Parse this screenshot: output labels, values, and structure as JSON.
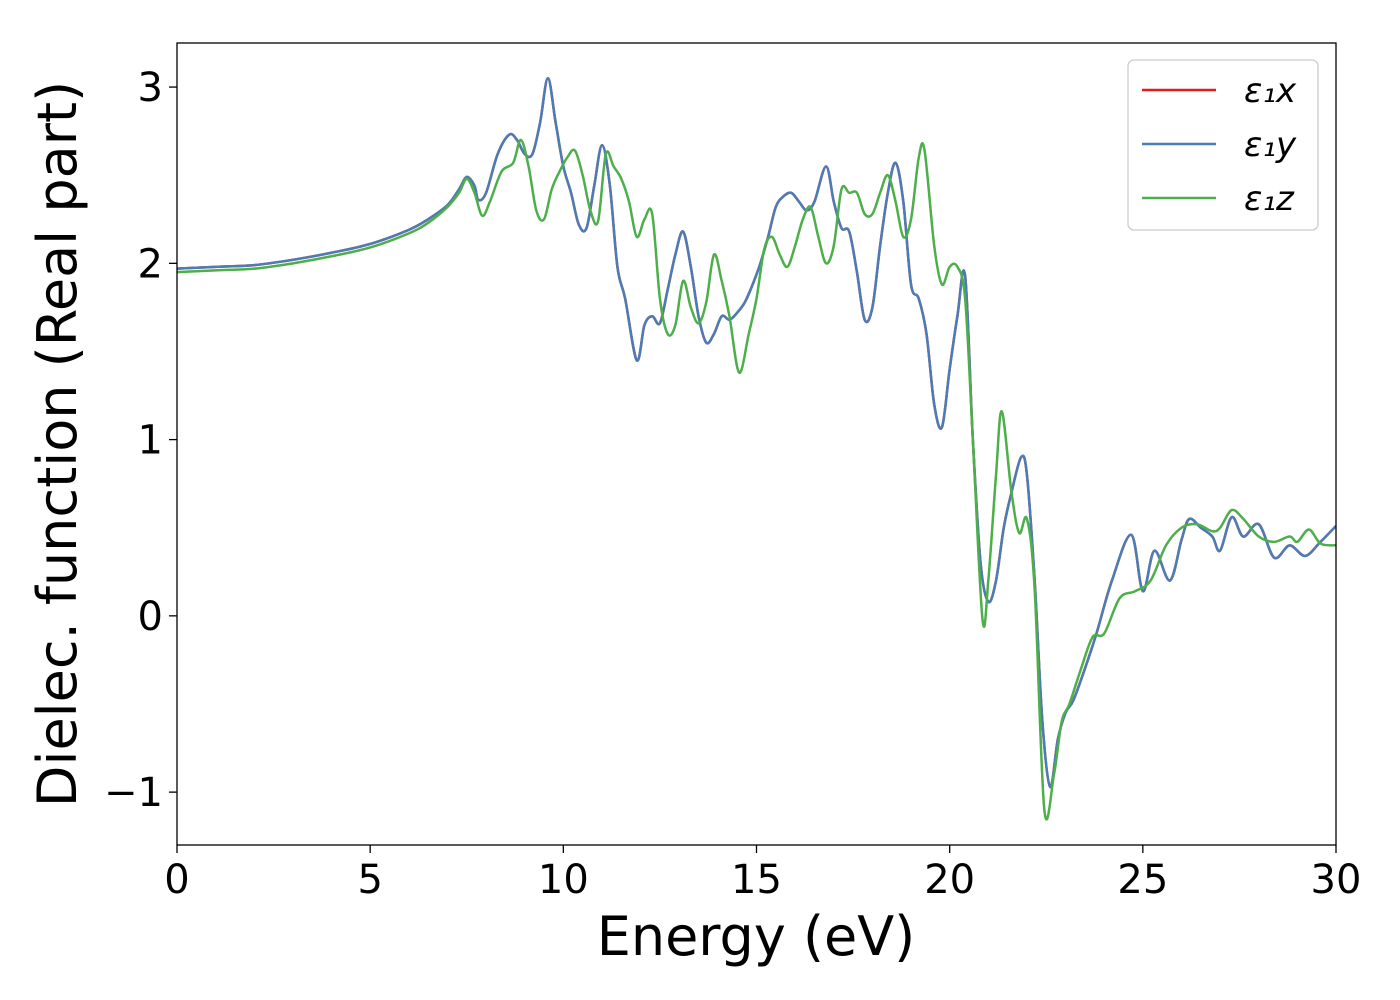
{
  "chart_data": {
    "type": "line",
    "xlabel": "Energy (eV)",
    "ylabel": "Dielec. function (Real part)",
    "xlim": [
      0,
      30
    ],
    "ylim": [
      -1.3,
      3.25
    ],
    "xticks": [
      0,
      5,
      10,
      15,
      20,
      25,
      30
    ],
    "xtick_labels": [
      "0",
      "5",
      "10",
      "15",
      "20",
      "25",
      "30"
    ],
    "yticks": [
      -1,
      0,
      1,
      2,
      3
    ],
    "ytick_labels": [
      "−1",
      "0",
      "1",
      "2",
      "3"
    ],
    "grid": false,
    "legend_position": "top-right",
    "series": [
      {
        "name": "ε₁x",
        "color": "#e41a1c",
        "x": [
          0,
          1,
          2,
          3,
          4,
          5,
          6,
          6.5,
          7,
          7.3,
          7.5,
          7.7,
          7.8,
          8.0,
          8.3,
          8.6,
          8.8,
          9.0,
          9.2,
          9.4,
          9.6,
          9.8,
          10.0,
          10.2,
          10.4,
          10.6,
          10.8,
          11.0,
          11.2,
          11.4,
          11.6,
          11.9,
          12.1,
          12.3,
          12.5,
          12.7,
          12.9,
          13.1,
          13.3,
          13.5,
          13.7,
          13.9,
          14.1,
          14.3,
          14.5,
          14.7,
          14.9,
          15.1,
          15.3,
          15.5,
          15.7,
          15.9,
          16.1,
          16.3,
          16.5,
          16.8,
          17.0,
          17.2,
          17.4,
          17.6,
          17.8,
          18.0,
          18.2,
          18.4,
          18.6,
          18.8,
          19.0,
          19.2,
          19.4,
          19.6,
          19.8,
          20.0,
          20.2,
          20.4,
          20.6,
          20.8,
          21.0,
          21.2,
          21.4,
          21.6,
          21.85,
          22.0,
          22.2,
          22.4,
          22.6,
          22.8,
          23.0,
          23.2,
          23.5,
          23.8,
          24.2,
          24.7,
          25.0,
          25.3,
          25.7,
          26.0,
          26.2,
          26.5,
          26.8,
          27.0,
          27.3,
          27.6,
          28.0,
          28.4,
          28.8,
          29.2,
          29.6,
          30.0
        ],
        "y": [
          1.97,
          1.98,
          1.99,
          2.02,
          2.06,
          2.11,
          2.19,
          2.25,
          2.33,
          2.42,
          2.49,
          2.44,
          2.36,
          2.4,
          2.62,
          2.73,
          2.7,
          2.62,
          2.62,
          2.8,
          3.05,
          2.8,
          2.55,
          2.4,
          2.22,
          2.2,
          2.44,
          2.67,
          2.45,
          1.98,
          1.8,
          1.45,
          1.65,
          1.7,
          1.66,
          1.85,
          2.05,
          2.18,
          1.98,
          1.7,
          1.55,
          1.6,
          1.7,
          1.68,
          1.72,
          1.78,
          1.88,
          2.0,
          2.15,
          2.32,
          2.38,
          2.4,
          2.35,
          2.3,
          2.35,
          2.55,
          2.35,
          2.2,
          2.18,
          1.95,
          1.68,
          1.75,
          2.1,
          2.4,
          2.57,
          2.35,
          1.88,
          1.8,
          1.6,
          1.2,
          1.07,
          1.4,
          1.7,
          1.93,
          1.0,
          0.3,
          0.08,
          0.2,
          0.5,
          0.7,
          0.9,
          0.8,
          0.2,
          -0.6,
          -0.97,
          -0.7,
          -0.55,
          -0.48,
          -0.3,
          -0.1,
          0.2,
          0.46,
          0.14,
          0.37,
          0.2,
          0.43,
          0.55,
          0.5,
          0.45,
          0.37,
          0.56,
          0.45,
          0.52,
          0.33,
          0.4,
          0.34,
          0.42,
          0.51
        ]
      },
      {
        "name": "ε₁y",
        "color": "#4a7db5",
        "x": [
          0,
          1,
          2,
          3,
          4,
          5,
          6,
          6.5,
          7,
          7.3,
          7.5,
          7.7,
          7.8,
          8.0,
          8.3,
          8.6,
          8.8,
          9.0,
          9.2,
          9.4,
          9.6,
          9.8,
          10.0,
          10.2,
          10.4,
          10.6,
          10.8,
          11.0,
          11.2,
          11.4,
          11.6,
          11.9,
          12.1,
          12.3,
          12.5,
          12.7,
          12.9,
          13.1,
          13.3,
          13.5,
          13.7,
          13.9,
          14.1,
          14.3,
          14.5,
          14.7,
          14.9,
          15.1,
          15.3,
          15.5,
          15.7,
          15.9,
          16.1,
          16.3,
          16.5,
          16.8,
          17.0,
          17.2,
          17.4,
          17.6,
          17.8,
          18.0,
          18.2,
          18.4,
          18.6,
          18.8,
          19.0,
          19.2,
          19.4,
          19.6,
          19.8,
          20.0,
          20.2,
          20.4,
          20.6,
          20.8,
          21.0,
          21.2,
          21.4,
          21.6,
          21.85,
          22.0,
          22.2,
          22.4,
          22.6,
          22.8,
          23.0,
          23.2,
          23.5,
          23.8,
          24.2,
          24.7,
          25.0,
          25.3,
          25.7,
          26.0,
          26.2,
          26.5,
          26.8,
          27.0,
          27.3,
          27.6,
          28.0,
          28.4,
          28.8,
          29.2,
          29.6,
          30.0
        ],
        "y": [
          1.97,
          1.98,
          1.99,
          2.02,
          2.06,
          2.11,
          2.19,
          2.25,
          2.33,
          2.42,
          2.49,
          2.44,
          2.36,
          2.4,
          2.62,
          2.73,
          2.7,
          2.62,
          2.62,
          2.8,
          3.05,
          2.8,
          2.55,
          2.4,
          2.22,
          2.2,
          2.44,
          2.67,
          2.45,
          1.98,
          1.8,
          1.45,
          1.65,
          1.7,
          1.66,
          1.85,
          2.05,
          2.18,
          1.98,
          1.7,
          1.55,
          1.6,
          1.7,
          1.68,
          1.72,
          1.78,
          1.88,
          2.0,
          2.15,
          2.32,
          2.38,
          2.4,
          2.35,
          2.3,
          2.35,
          2.55,
          2.35,
          2.2,
          2.18,
          1.95,
          1.68,
          1.75,
          2.1,
          2.4,
          2.57,
          2.35,
          1.88,
          1.8,
          1.6,
          1.2,
          1.07,
          1.4,
          1.7,
          1.93,
          1.0,
          0.3,
          0.08,
          0.2,
          0.5,
          0.7,
          0.9,
          0.8,
          0.2,
          -0.6,
          -0.97,
          -0.7,
          -0.55,
          -0.48,
          -0.3,
          -0.1,
          0.2,
          0.46,
          0.14,
          0.37,
          0.2,
          0.43,
          0.55,
          0.5,
          0.45,
          0.37,
          0.56,
          0.45,
          0.52,
          0.33,
          0.4,
          0.34,
          0.42,
          0.51
        ]
      },
      {
        "name": "ε₁z",
        "color": "#4daf4a",
        "x": [
          0,
          1,
          2,
          3,
          4,
          5,
          6,
          6.5,
          7,
          7.3,
          7.5,
          7.7,
          7.9,
          8.1,
          8.4,
          8.7,
          8.9,
          9.1,
          9.3,
          9.5,
          9.7,
          9.9,
          10.1,
          10.3,
          10.5,
          10.7,
          10.9,
          11.1,
          11.3,
          11.5,
          11.7,
          11.9,
          12.1,
          12.3,
          12.5,
          12.7,
          12.9,
          13.1,
          13.3,
          13.5,
          13.7,
          13.9,
          14.1,
          14.3,
          14.55,
          14.8,
          15.0,
          15.2,
          15.4,
          15.6,
          15.8,
          16.0,
          16.2,
          16.4,
          16.6,
          16.8,
          17.0,
          17.2,
          17.4,
          17.6,
          17.8,
          18.0,
          18.2,
          18.4,
          18.6,
          18.8,
          19.0,
          19.2,
          19.35,
          19.6,
          19.8,
          20.0,
          20.2,
          20.4,
          20.6,
          20.85,
          21.0,
          21.2,
          21.35,
          21.6,
          21.8,
          22.0,
          22.2,
          22.45,
          22.7,
          22.9,
          23.1,
          23.4,
          23.7,
          24.0,
          24.4,
          24.8,
          25.2,
          25.6,
          26.0,
          26.4,
          26.8,
          27.0,
          27.3,
          27.6,
          28.0,
          28.4,
          28.8,
          29.0,
          29.3,
          29.6,
          30.0
        ],
        "y": [
          1.95,
          1.96,
          1.97,
          2.0,
          2.04,
          2.09,
          2.17,
          2.23,
          2.32,
          2.4,
          2.48,
          2.4,
          2.27,
          2.35,
          2.52,
          2.57,
          2.7,
          2.55,
          2.3,
          2.25,
          2.42,
          2.52,
          2.6,
          2.64,
          2.5,
          2.3,
          2.24,
          2.62,
          2.55,
          2.48,
          2.35,
          2.15,
          2.25,
          2.28,
          1.8,
          1.6,
          1.65,
          1.9,
          1.75,
          1.66,
          1.78,
          2.05,
          1.9,
          1.7,
          1.38,
          1.6,
          1.8,
          2.08,
          2.15,
          2.05,
          1.98,
          2.1,
          2.25,
          2.32,
          2.15,
          2.0,
          2.1,
          2.42,
          2.4,
          2.4,
          2.28,
          2.28,
          2.4,
          2.5,
          2.35,
          2.15,
          2.25,
          2.6,
          2.64,
          2.1,
          1.88,
          1.98,
          1.98,
          1.8,
          1.0,
          -0.02,
          0.2,
          0.8,
          1.16,
          0.7,
          0.47,
          0.55,
          0.15,
          -1.1,
          -0.9,
          -0.6,
          -0.5,
          -0.3,
          -0.12,
          -0.1,
          0.1,
          0.14,
          0.2,
          0.4,
          0.5,
          0.52,
          0.48,
          0.5,
          0.6,
          0.55,
          0.45,
          0.42,
          0.45,
          0.42,
          0.49,
          0.41,
          0.4
        ]
      }
    ]
  }
}
